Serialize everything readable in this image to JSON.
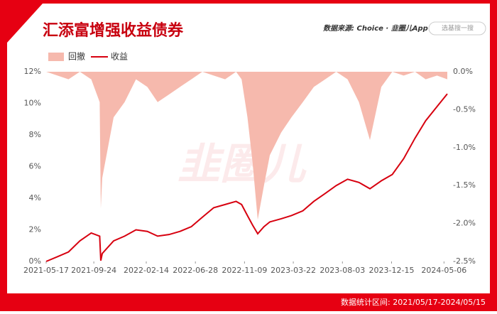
{
  "chart_data": {
    "type": "line",
    "title": "汇添富增强收益债券",
    "source": "数据来源: Choice · 韭圈儿App",
    "search_placeholder": "选基搜一搜",
    "watermark": "韭圈儿",
    "period": "数据统计区间: 2021/05/17-2024/05/15",
    "x": [
      "2021-05-17",
      "2021-06-17",
      "2021-07-17",
      "2021-08-17",
      "2021-09-17",
      "2021-10-10",
      "2021-10-13",
      "2021-10-17",
      "2021-11-17",
      "2021-12-17",
      "2022-01-17",
      "2022-02-17",
      "2022-03-17",
      "2022-04-17",
      "2022-05-17",
      "2022-06-17",
      "2022-07-17",
      "2022-08-17",
      "2022-09-17",
      "2022-10-17",
      "2022-11-01",
      "2022-11-17",
      "2022-12-01",
      "2022-12-15",
      "2023-01-01",
      "2023-01-17",
      "2023-02-17",
      "2023-03-17",
      "2023-04-17",
      "2023-05-17",
      "2023-06-17",
      "2023-07-17",
      "2023-08-17",
      "2023-09-17",
      "2023-10-17",
      "2023-11-17",
      "2023-12-17",
      "2024-01-17",
      "2024-02-17",
      "2024-03-17",
      "2024-04-17",
      "2024-05-15"
    ],
    "series": [
      {
        "name": "回撤",
        "kind": "area",
        "axis": "y2",
        "color": "#f6b9ad",
        "values": [
          0,
          -0.05,
          -0.1,
          0,
          -0.1,
          -0.4,
          -1.8,
          -1.4,
          -0.6,
          -0.4,
          -0.1,
          -0.2,
          -0.4,
          -0.3,
          -0.2,
          -0.1,
          0,
          -0.05,
          -0.1,
          0,
          -0.1,
          -0.6,
          -1.2,
          -1.95,
          -1.5,
          -1.1,
          -0.8,
          -0.6,
          -0.4,
          -0.2,
          -0.1,
          0,
          -0.1,
          -0.4,
          -0.9,
          -0.2,
          0,
          -0.05,
          0,
          -0.1,
          -0.05,
          -0.1
        ]
      },
      {
        "name": "收益",
        "kind": "line",
        "color": "#d7000f",
        "values": [
          0,
          0.3,
          0.6,
          1.3,
          1.8,
          1.6,
          0.05,
          0.5,
          1.3,
          1.6,
          2.0,
          1.9,
          1.6,
          1.7,
          1.9,
          2.2,
          2.8,
          3.4,
          3.6,
          3.8,
          3.6,
          2.9,
          2.3,
          1.75,
          2.2,
          2.5,
          2.7,
          2.9,
          3.2,
          3.8,
          4.3,
          4.8,
          5.2,
          5.0,
          4.6,
          5.1,
          5.5,
          6.5,
          7.8,
          8.9,
          9.8,
          10.6
        ]
      }
    ],
    "xlim": [
      "2021-05-17",
      "2024-05-15"
    ],
    "xticks": [
      "2021-05-17",
      "2021-09-24",
      "2022-02-14",
      "2022-06-28",
      "2022-11-09",
      "2023-03-22",
      "2023-08-03",
      "2023-12-15",
      "2024-05-06"
    ],
    "ylim": [
      0,
      12
    ],
    "yticks": [
      {
        "value": 0,
        "label": "0%"
      },
      {
        "value": 2,
        "label": "2%"
      },
      {
        "value": 4,
        "label": "4%"
      },
      {
        "value": 6,
        "label": "6%"
      },
      {
        "value": 8,
        "label": "8%"
      },
      {
        "value": 10,
        "label": "10%"
      },
      {
        "value": 12,
        "label": "12%"
      }
    ],
    "y2lim": [
      -2.5,
      0
    ],
    "y2ticks": [
      {
        "value": 0,
        "label": "0.0%"
      },
      {
        "value": -0.5,
        "label": "-0.5%"
      },
      {
        "value": -1,
        "label": "-1.0%"
      },
      {
        "value": -1.5,
        "label": "-1.5%"
      },
      {
        "value": -2,
        "label": "-2.0%"
      },
      {
        "value": -2.5,
        "label": "-2.5%"
      }
    ],
    "grid": false
  }
}
